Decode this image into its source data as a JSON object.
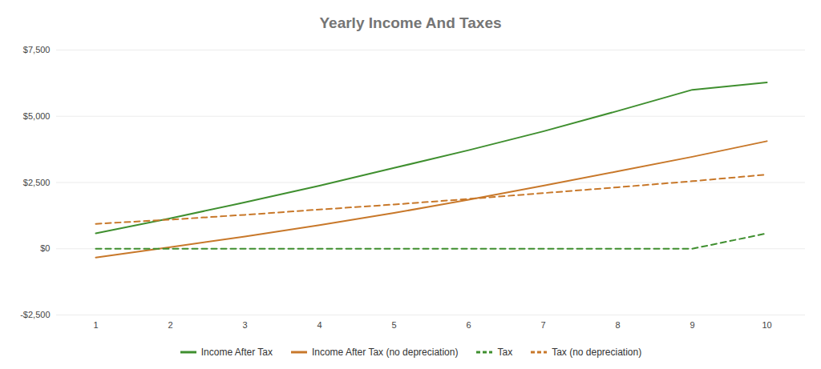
{
  "chart_data": {
    "type": "line",
    "title": "Yearly Income And Taxes",
    "categories": [
      "1",
      "2",
      "3",
      "4",
      "5",
      "6",
      "7",
      "8",
      "9",
      "10"
    ],
    "series": [
      {
        "name": "Income After Tax",
        "color": "#3f8f2f",
        "line_style": "solid",
        "values": [
          580,
          1150,
          1750,
          2380,
          3050,
          3720,
          4430,
          5200,
          6000,
          6280
        ]
      },
      {
        "name": "Income After Tax (no depreciation)",
        "color": "#c8782a",
        "line_style": "solid",
        "values": [
          -330,
          60,
          460,
          890,
          1350,
          1850,
          2380,
          2920,
          3470,
          4060
        ]
      },
      {
        "name": "Tax",
        "color": "#3f8f2f",
        "line_style": "dashed",
        "values": [
          0,
          0,
          0,
          0,
          0,
          0,
          0,
          0,
          0,
          580
        ]
      },
      {
        "name": "Tax (no depreciation)",
        "color": "#c8782a",
        "line_style": "dashed",
        "values": [
          940,
          1100,
          1280,
          1480,
          1670,
          1880,
          2100,
          2320,
          2550,
          2800
        ]
      }
    ],
    "ylim": [
      -2500,
      7500
    ],
    "yticks": [
      {
        "value": -2500,
        "label": "-$2,500"
      },
      {
        "value": 0,
        "label": "$0"
      },
      {
        "value": 2500,
        "label": "$2,500"
      },
      {
        "value": 5000,
        "label": "$5,000"
      },
      {
        "value": 7500,
        "label": "$7,500"
      }
    ],
    "grid": true,
    "legend": "bottom"
  }
}
